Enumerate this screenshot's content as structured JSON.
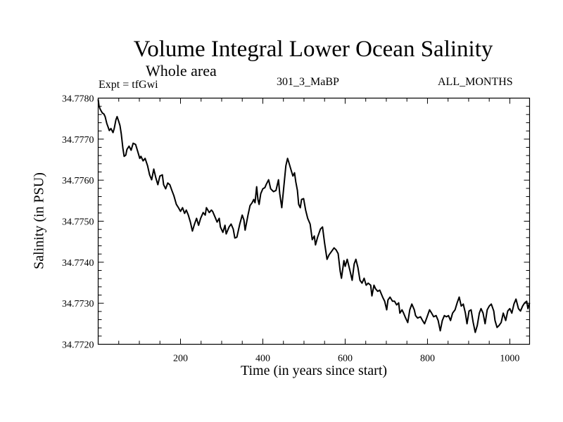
{
  "chart_data": {
    "type": "line",
    "title": "Volume Integral Lower Ocean Salinity",
    "subtitle": "Whole area",
    "annotations": {
      "experiment": "Expt = tfGwi",
      "run": "301_3_MaBP",
      "months": "ALL_MONTHS"
    },
    "xlabel": "Time (in years since start)",
    "ylabel": "Salinity (in PSU)",
    "xlim": [
      0,
      1048
    ],
    "ylim": [
      34.772,
      34.778
    ],
    "x_ticks": [
      200,
      400,
      600,
      800,
      1000
    ],
    "x_tick_labels": [
      "200",
      "400",
      "600",
      "800",
      "1000"
    ],
    "x_minor_step": 50,
    "y_ticks": [
      34.772,
      34.773,
      34.774,
      34.775,
      34.776,
      34.777,
      34.778
    ],
    "y_tick_labels": [
      "34.7720",
      "34.7730",
      "34.7740",
      "34.7750",
      "34.7760",
      "34.7770",
      "34.7780"
    ],
    "y_minor_step": 0.0002,
    "grid": false,
    "legend": "none",
    "line_color": "#000000",
    "series": [
      {
        "name": "Salinity",
        "x": [
          0,
          2,
          5,
          10,
          14,
          17,
          21,
          24,
          27,
          31,
          36,
          39,
          43,
          46,
          50,
          53,
          56,
          60,
          63,
          67,
          70,
          75,
          80,
          85,
          91,
          96,
          101,
          104,
          109,
          114,
          120,
          125,
          130,
          135,
          140,
          145,
          150,
          156,
          159,
          164,
          169,
          174,
          179,
          184,
          190,
          195,
          200,
          205,
          210,
          214,
          219,
          224,
          229,
          234,
          239,
          244,
          249,
          255,
          260,
          263,
          270,
          275,
          278,
          284,
          289,
          294,
          297,
          303,
          308,
          311,
          318,
          323,
          328,
          332,
          337,
          344,
          350,
          354,
          357,
          364,
          369,
          374,
          378,
          381,
          385,
          388,
          391,
          395,
          400,
          405,
          408,
          414,
          419,
          426,
          432,
          438,
          441,
          446,
          451,
          456,
          460,
          463,
          468,
          473,
          477,
          480,
          484,
          487,
          491,
          494,
          499,
          504,
          509,
          515,
          520,
          525,
          528,
          533,
          540,
          545,
          550,
          556,
          561,
          566,
          573,
          578,
          583,
          588,
          591,
          597,
          600,
          605,
          612,
          617,
          622,
          626,
          631,
          636,
          641,
          646,
          651,
          656,
          662,
          665,
          670,
          674,
          679,
          684,
          691,
          696,
          701,
          704,
          709,
          715,
          720,
          725,
          730,
          733,
          738,
          742,
          747,
          752,
          757,
          762,
          768,
          771,
          776,
          783,
          788,
          793,
          798,
          805,
          810,
          815,
          821,
          826,
          831,
          836,
          841,
          846,
          851,
          856,
          861,
          867,
          872,
          877,
          882,
          887,
          892,
          896,
          901,
          906,
          911,
          916,
          921,
          926,
          930,
          935,
          940,
          945,
          950,
          955,
          961,
          964,
          969,
          974,
          979,
          984,
          990,
          995,
          1000,
          1005,
          1010,
          1015,
          1021,
          1026,
          1031,
          1036,
          1041,
          1044,
          1048
        ],
        "values": [
          34.77797,
          34.77781,
          34.77773,
          34.77764,
          34.77761,
          34.77755,
          34.77738,
          34.7773,
          34.77721,
          34.77726,
          34.77716,
          34.77726,
          34.77747,
          34.77755,
          34.77743,
          34.77733,
          34.77713,
          34.77678,
          34.77658,
          34.77661,
          34.77675,
          34.77683,
          34.77673,
          34.7769,
          34.77687,
          34.7767,
          34.77653,
          34.77658,
          34.77647,
          34.77653,
          34.77635,
          34.77613,
          34.77601,
          34.77627,
          34.77606,
          34.77589,
          34.7761,
          34.77613,
          34.77589,
          34.77579,
          34.77593,
          34.77589,
          34.77575,
          34.77562,
          34.77541,
          34.77533,
          34.77524,
          34.77533,
          34.77519,
          34.77527,
          34.77515,
          34.77498,
          34.77476,
          34.77493,
          34.77507,
          34.7749,
          34.77507,
          34.77521,
          34.77515,
          34.77533,
          34.77521,
          34.77527,
          34.77524,
          34.7751,
          34.77498,
          34.77507,
          34.77486,
          34.77473,
          34.7749,
          34.77469,
          34.77486,
          34.77493,
          34.77481,
          34.77459,
          34.77461,
          34.77493,
          34.77515,
          34.77503,
          34.77478,
          34.77515,
          34.77538,
          34.77545,
          34.77553,
          34.77545,
          34.77584,
          34.77553,
          34.77541,
          34.77567,
          34.77579,
          34.77582,
          34.77589,
          34.77601,
          34.77579,
          34.77572,
          34.77575,
          34.77601,
          34.77567,
          34.77533,
          34.77584,
          34.77635,
          34.77653,
          34.77644,
          34.77627,
          34.7761,
          34.77618,
          34.77596,
          34.77575,
          34.77541,
          34.77533,
          34.77553,
          34.77555,
          34.77527,
          34.77507,
          34.77493,
          34.77455,
          34.77464,
          34.77442,
          34.77461,
          34.77481,
          34.77486,
          34.77447,
          34.77407,
          34.77418,
          34.77425,
          34.77435,
          34.7743,
          34.77421,
          34.77378,
          34.77361,
          34.77404,
          34.7739,
          34.77407,
          34.77378,
          34.77356,
          34.77396,
          34.77407,
          34.77387,
          34.77356,
          34.77349,
          34.77361,
          34.77344,
          34.77349,
          34.77344,
          34.77318,
          34.77344,
          34.77335,
          34.77329,
          34.77332,
          34.77315,
          34.77305,
          34.77284,
          34.77308,
          34.77315,
          34.77305,
          34.77305,
          34.77296,
          34.77301,
          34.77276,
          34.77284,
          34.77276,
          34.77264,
          34.77253,
          34.77284,
          34.77298,
          34.77284,
          34.7727,
          34.77264,
          34.77267,
          34.77258,
          34.7725,
          34.77264,
          34.77284,
          34.77276,
          34.77267,
          34.7727,
          34.77258,
          34.77233,
          34.77258,
          34.7727,
          34.77267,
          34.7727,
          34.77258,
          34.77276,
          34.77284,
          34.77301,
          34.77315,
          34.77293,
          34.77298,
          34.77276,
          34.7725,
          34.77281,
          34.77284,
          34.77253,
          34.77229,
          34.77246,
          34.77276,
          34.77287,
          34.77276,
          34.7725,
          34.77284,
          34.77293,
          34.77298,
          34.77281,
          34.77258,
          34.77241,
          34.77246,
          34.77253,
          34.77276,
          34.77258,
          34.77281,
          34.77287,
          34.77276,
          34.77298,
          34.7731,
          34.77287,
          34.77281,
          34.77293,
          34.77301,
          34.77305,
          34.77287,
          34.77301
        ]
      }
    ]
  }
}
